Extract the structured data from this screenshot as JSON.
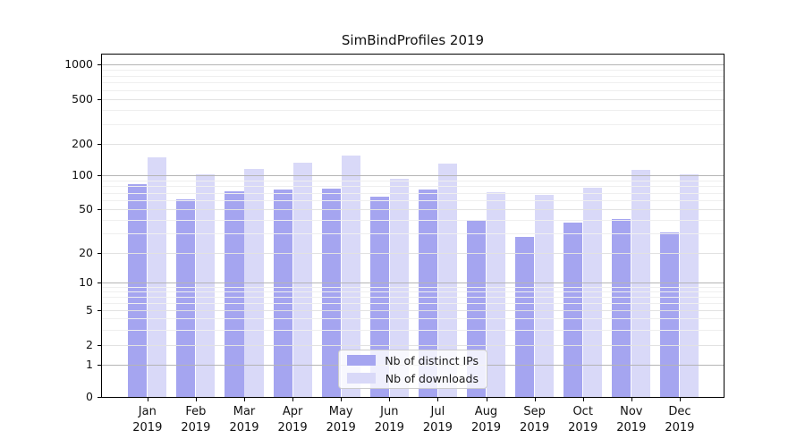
{
  "chart_data": {
    "type": "bar",
    "title": "SimBindProfiles 2019",
    "categories": [
      "Jan 2019",
      "Feb 2019",
      "Mar 2019",
      "Apr 2019",
      "May 2019",
      "Jun 2019",
      "Jul 2019",
      "Aug 2019",
      "Sep 2019",
      "Oct 2019",
      "Nov 2019",
      "Dec 2019"
    ],
    "series": [
      {
        "name": "Nb of distinct IPs",
        "color": "#a5a5f0",
        "values": [
          84,
          61,
          72,
          75,
          76,
          64,
          75,
          40,
          28,
          38,
          41,
          31
        ]
      },
      {
        "name": "Nb of downloads",
        "color": "#d9d9f8",
        "values": [
          149,
          103,
          114,
          133,
          155,
          93,
          129,
          71,
          67,
          78,
          113,
          102
        ]
      }
    ],
    "xlabel": "",
    "ylabel": "",
    "yscale": "symlog",
    "y_ticks": [
      0,
      1,
      2,
      5,
      10,
      20,
      50,
      100,
      200,
      500,
      1000
    ],
    "ylim": [
      0,
      1300
    ],
    "grid": "both",
    "legend_position": "lower center"
  }
}
